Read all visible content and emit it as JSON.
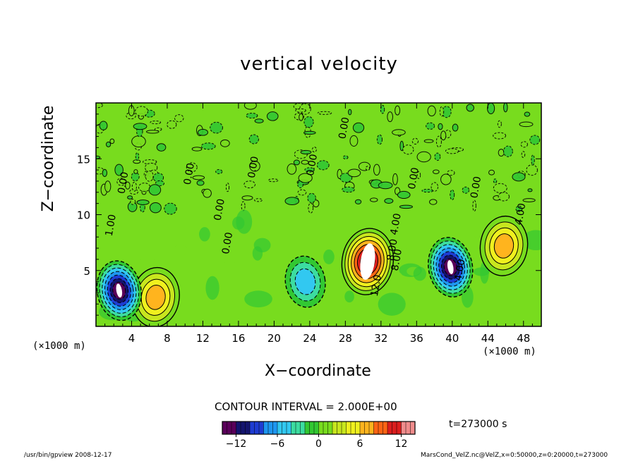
{
  "title": "vertical velocity",
  "xlabel": "X−coordinate",
  "ylabel": "Z−coordinate",
  "x_unit_left": "(×1000 m)",
  "x_unit_right": "(×1000 m)",
  "contour_interval_label": "CONTOUR INTERVAL = 2.000E+00",
  "time_label": "t=273000 s",
  "footer_left": "/usr/bin/gpview   2008-12-17",
  "footer_right": "MarsCond_VelZ.nc@VelZ,x=0:50000,z=0:20000,t=273000",
  "chart_data": {
    "type": "heatmap",
    "title": "vertical velocity",
    "xlabel": "X−coordinate",
    "ylabel": "Z−coordinate",
    "x_ticks": [
      "4",
      "8",
      "12",
      "16",
      "20",
      "24",
      "28",
      "32",
      "36",
      "40",
      "44",
      "48"
    ],
    "y_ticks": [
      "5",
      "10",
      "15"
    ],
    "xlim": [
      0,
      50
    ],
    "ylim": [
      0,
      20
    ],
    "contour_interval": 2.0,
    "colorbar": {
      "ticks": [
        "−12",
        "−6",
        "0",
        "6",
        "12"
      ],
      "range": [
        -14,
        14
      ],
      "colors": [
        "#5a005a",
        "#14146e",
        "#1e3cd2",
        "#1e96f0",
        "#32c8f0",
        "#3cdca0",
        "#32c832",
        "#78dc1e",
        "#c8e61e",
        "#f0f01e",
        "#ffb41e",
        "#ff6414",
        "#dc1e1e",
        "#f08c8c"
      ]
    },
    "contour_labels": [
      {
        "text": "1.00",
        "x": 2.0,
        "z": 9.0,
        "angle": -80
      },
      {
        "text": "0.00",
        "x": 3.4,
        "z": 12.8,
        "angle": -80
      },
      {
        "text": "0.00",
        "x": 10.8,
        "z": 13.6,
        "angle": -80
      },
      {
        "text": "0.00",
        "x": 14.2,
        "z": 10.4,
        "angle": -80
      },
      {
        "text": "0.00",
        "x": 15.1,
        "z": 7.4,
        "angle": -80
      },
      {
        "text": "0.00",
        "x": 18.0,
        "z": 14.2,
        "angle": -80
      },
      {
        "text": "0.00",
        "x": 24.6,
        "z": 14.4,
        "angle": -80
      },
      {
        "text": "0.00",
        "x": 28.2,
        "z": 17.7,
        "angle": -80
      },
      {
        "text": "0.00",
        "x": 36.0,
        "z": 13.2,
        "angle": -80
      },
      {
        "text": "4.00",
        "x": 34.0,
        "z": 9.1,
        "angle": -80
      },
      {
        "text": "8.00",
        "x": 33.6,
        "z": 6.8,
        "angle": -80
      },
      {
        "text": "8.00",
        "x": 34.1,
        "z": 5.9,
        "angle": -80
      },
      {
        "text": "12.0",
        "x": 31.8,
        "z": 3.6,
        "angle": -80
      },
      {
        "text": "4.00",
        "x": 41.2,
        "z": 5.0,
        "angle": -80
      },
      {
        "text": "0.00",
        "x": 43.0,
        "z": 12.4,
        "angle": -80
      },
      {
        "text": "4.00",
        "x": 48.0,
        "z": 10.0,
        "angle": -80
      }
    ],
    "features": [
      {
        "kind": "updraft",
        "x": 6.7,
        "z": 2.6,
        "peak": 8
      },
      {
        "kind": "downdraft",
        "x": 2.6,
        "z": 3.2,
        "peak": -14
      },
      {
        "kind": "downdraft",
        "x": 23.5,
        "z": 4.0,
        "peak": -6
      },
      {
        "kind": "updraft",
        "x": 30.5,
        "z": 5.8,
        "peak": 14
      },
      {
        "kind": "downdraft",
        "x": 39.8,
        "z": 5.3,
        "peak": -14
      },
      {
        "kind": "updraft",
        "x": 45.8,
        "z": 7.2,
        "peak": 8
      }
    ]
  }
}
